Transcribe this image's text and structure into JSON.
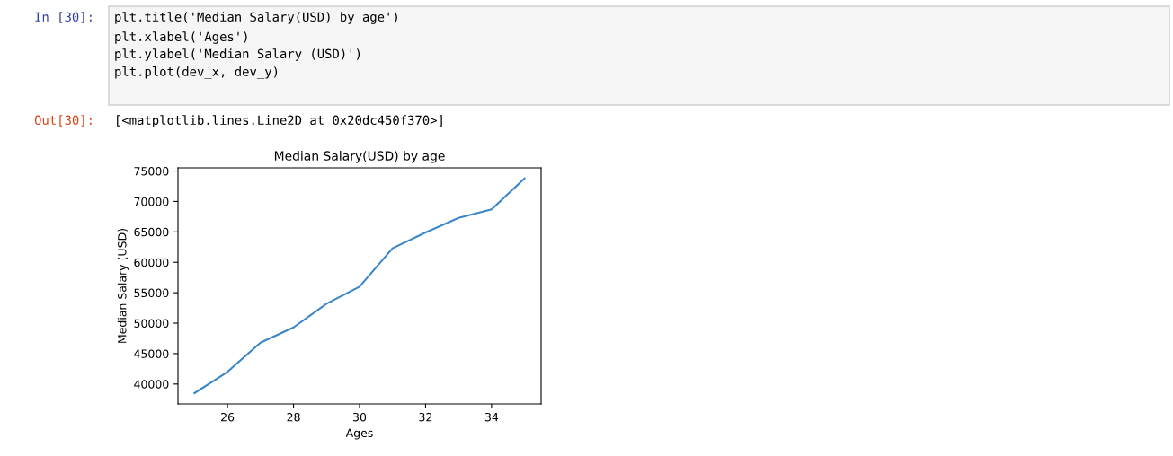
{
  "chart_data": {
    "type": "line",
    "title": "Median Salary(USD) by age",
    "xlabel": "Ages",
    "ylabel": "Median Salary (USD)",
    "x": [
      25,
      26,
      27,
      28,
      29,
      30,
      31,
      32,
      33,
      34,
      35
    ],
    "series": [
      {
        "color": "#3a86c8",
        "values": [
          38500,
          42000,
          46800,
          49300,
          53200,
          56000,
          62300,
          64900,
          67300,
          68700,
          73800
        ]
      }
    ],
    "xlim": [
      24.5,
      35.5
    ],
    "xticks": [
      26,
      28,
      30,
      32,
      34
    ],
    "ylim": [
      36730,
      75520
    ],
    "yticks": [
      40000,
      45000,
      50000,
      55000,
      60000,
      65000,
      70000,
      75000
    ],
    "grid": false,
    "legend": false,
    "marker": "none",
    "line_style": "solid",
    "annotations": [
      "In [30]:",
      "plt.title('Median Salary(USD) by age')",
      "plt.xlabel('Ages')",
      "plt.ylabel('Median Salary (USD)')",
      "plt.plot(dev_x, dev_y)",
      "Out[30]:",
      "[<matplotlib.lines.Line2D at 0x20dc450f370>]"
    ]
  }
}
